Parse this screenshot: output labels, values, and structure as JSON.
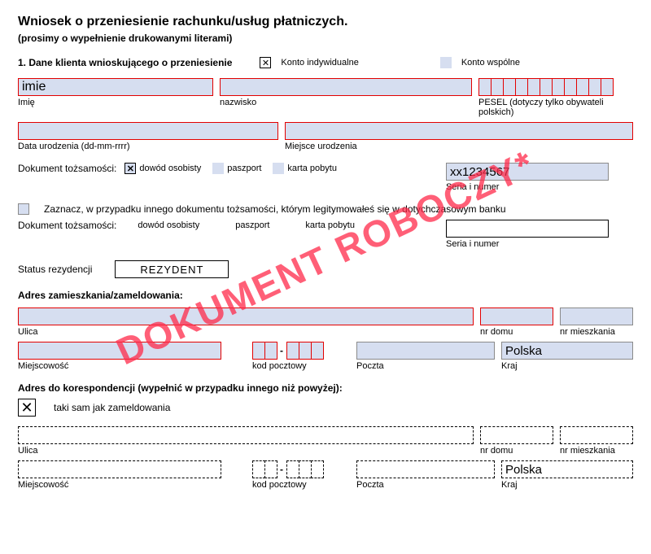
{
  "header": {
    "title": "Wniosek o przeniesienie rachunku/usług płatniczych.",
    "subtitle": "(prosimy o wypełnienie drukowanymi literami)"
  },
  "section1": {
    "heading": "1.  Dane klienta wnioskującego o przeniesienie",
    "account_individual_label": "Konto indywidualne",
    "account_individual_checked": "✕",
    "account_joint_label": "Konto wspólne"
  },
  "personal": {
    "first_name_value": "imie",
    "first_name_label": "Imię",
    "last_name_label": "nazwisko",
    "pesel_label": "PESEL (dotyczy tylko obywateli polskich)",
    "pesel_cell_count": 11,
    "dob_label": "Data urodzenia (dd-mm-rrrr)",
    "pob_label": "Miejsce urodzenia"
  },
  "id_doc": {
    "label": "Dokument tożsamości:",
    "opt_id": "dowód osobisty",
    "opt_id_checked": "✕",
    "opt_passport": "paszport",
    "opt_stay": "karta pobytu",
    "serial_value": "xx1234567",
    "serial_label": "Seria i numer"
  },
  "other_doc": {
    "note": "Zaznacz, w przypadku innego dokumentu tożsamości, którym legitymowałeś się w dotychczasowym banku",
    "label": "Dokument tożsamości:",
    "opt_id": "dowód osobisty",
    "opt_passport": "paszport",
    "opt_stay": "karta pobytu",
    "serial_label": "Seria i numer"
  },
  "residency": {
    "label": "Status rezydencji",
    "value": "REZYDENT"
  },
  "address": {
    "heading": "Adres zamieszkania/zameldowania:",
    "street_label": "Ulica",
    "house_label": "nr domu",
    "apt_label": "nr mieszkania",
    "city_label": "Miejscowość",
    "postcode_label": "kod pocztowy",
    "post_label": "Poczta",
    "country_label": "Kraj",
    "country_value": "Polska"
  },
  "corr": {
    "heading": "Adres do korespondencji (wypełnić w przypadku innego niż powyżej):",
    "same_label": "taki sam jak zameldowania",
    "same_checked": "✕",
    "street_label": "Ulica",
    "house_label": "nr domu",
    "apt_label": "nr mieszkania",
    "city_label": "Miejscowość",
    "postcode_label": "kod pocztowy",
    "post_label": "Poczta",
    "country_label": "Kraj",
    "country_value": "Polska"
  },
  "watermark": "DOKUMENT ROBOCZY*",
  "colors": {
    "field_bg": "#d6def0",
    "required_border": "#e30000",
    "watermark_color": "#ff2a4a"
  }
}
